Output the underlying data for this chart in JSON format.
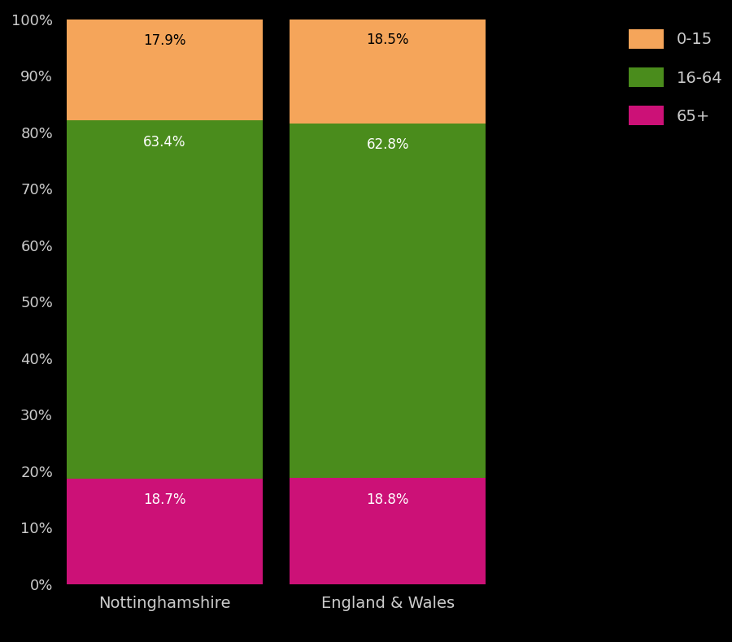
{
  "categories": [
    "Nottinghamshire",
    "England & Wales"
  ],
  "segments": {
    "65+": [
      18.7,
      18.8
    ],
    "16-64": [
      63.4,
      62.8
    ],
    "0-15": [
      17.9,
      18.5
    ]
  },
  "colors": {
    "65+": "#cc1177",
    "16-64": "#4a8c1c",
    "0-15": "#f5a55a"
  },
  "label_colors": {
    "65+": "white",
    "16-64": "white",
    "0-15": "black"
  },
  "background_color": "#000000",
  "text_color": "#cccccc",
  "ytick_labels": [
    "0%",
    "10%",
    "20%",
    "30%",
    "40%",
    "50%",
    "60%",
    "70%",
    "80%",
    "90%",
    "100%"
  ],
  "ytick_values": [
    0,
    10,
    20,
    30,
    40,
    50,
    60,
    70,
    80,
    90,
    100
  ],
  "figsize": [
    9.0,
    7.9
  ],
  "dpi": 100,
  "legend_fontsize": 14,
  "tick_fontsize": 13,
  "xlabel_fontsize": 14,
  "annotation_fontsize": 12,
  "bar_positions": [
    1,
    2
  ],
  "bar_width": 0.88,
  "xlim": [
    0.525,
    2.985
  ],
  "sep_x": 1.5,
  "annot_label_offsets": {
    "0-15": -2.5,
    "16-64": 3.0,
    "65+": 3.0
  }
}
